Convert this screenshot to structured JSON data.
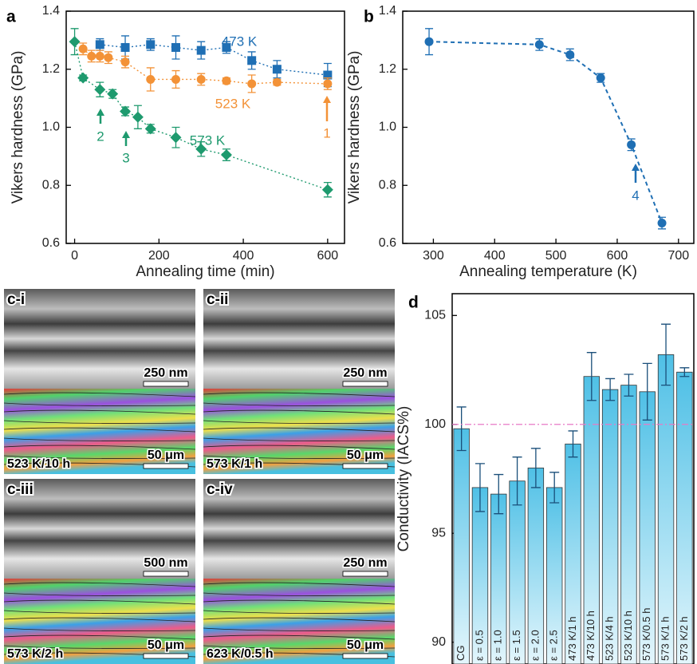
{
  "chart_data": [
    {
      "type": "line",
      "panel": "a",
      "xlabel": "Annealing time (min)",
      "ylabel": "Vikers hardness (GPa)",
      "xlim": [
        -20,
        640
      ],
      "xticks": [
        0,
        200,
        400,
        600
      ],
      "ylim": [
        0.6,
        1.4
      ],
      "yticks": [
        0.6,
        0.8,
        {
          "value": 1,
          "label": "1.0"
        },
        1.2,
        1.4
      ],
      "linestyle": "dotted",
      "series": [
        {
          "name": "473 K",
          "color": "#1f6fb4",
          "marker": "square",
          "x": [
            60,
            120,
            180,
            240,
            300,
            360,
            420,
            480,
            600
          ],
          "values": [
            1.285,
            1.275,
            1.285,
            1.275,
            1.265,
            1.275,
            1.23,
            1.2,
            1.18
          ],
          "errors": [
            0.02,
            0.04,
            0.02,
            0.04,
            0.03,
            0.02,
            0.03,
            0.03,
            0.04
          ]
        },
        {
          "name": "523 K",
          "color": "#f39237",
          "marker": "circle",
          "x": [
            20,
            40,
            60,
            80,
            120,
            180,
            240,
            300,
            360,
            420,
            480,
            600
          ],
          "values": [
            1.27,
            1.245,
            1.245,
            1.24,
            1.225,
            1.165,
            1.165,
            1.165,
            1.16,
            1.15,
            1.155,
            1.15
          ],
          "errors": [
            0.02,
            0.02,
            0.02,
            0.02,
            0.02,
            0.04,
            0.03,
            0.02,
            0.01,
            0.03,
            0.01,
            0.02
          ]
        },
        {
          "name": "573 K",
          "color": "#1e9a6e",
          "marker": "diamond",
          "x": [
            0,
            20,
            60,
            90,
            120,
            150,
            180,
            240,
            300,
            360,
            600
          ],
          "values": [
            1.295,
            1.17,
            1.13,
            1.115,
            1.055,
            1.035,
            0.995,
            0.965,
            0.925,
            0.905,
            0.785
          ],
          "errors": [
            0.045,
            0.01,
            0.025,
            0.015,
            0.015,
            0.04,
            0.015,
            0.035,
            0.025,
            0.02,
            0.025
          ]
        }
      ],
      "annotations": [
        {
          "text": "473 K",
          "color": "#1f6fb4",
          "arrow": false
        },
        {
          "text": "523 K",
          "color": "#f39237",
          "arrow": false
        },
        {
          "text": "573 K",
          "color": "#1e9a6e",
          "arrow": false
        },
        {
          "text": "1",
          "color": "#f39237",
          "arrow": true
        },
        {
          "text": "2",
          "color": "#1e9a6e",
          "arrow": true
        },
        {
          "text": "3",
          "color": "#1e9a6e",
          "arrow": true
        }
      ]
    },
    {
      "type": "line",
      "panel": "b",
      "xlabel": "Annealing temperature (K)",
      "ylabel": "Vikers hardness (GPa)",
      "xlim": [
        250,
        725
      ],
      "xticks": [
        300,
        400,
        500,
        600,
        700
      ],
      "ylim": [
        0.6,
        1.4
      ],
      "yticks": [
        0.6,
        0.8,
        {
          "value": 1,
          "label": "1.0"
        },
        1.2,
        1.4
      ],
      "linestyle": "dashed",
      "series": [
        {
          "name": "",
          "color": "#1f6fb4",
          "marker": "circle",
          "x": [
            293,
            473,
            523,
            573,
            623,
            673
          ],
          "values": [
            1.295,
            1.285,
            1.25,
            1.17,
            0.94,
            0.67
          ],
          "errors": [
            0.045,
            0.02,
            0.02,
            0.015,
            0.02,
            0.02
          ]
        }
      ],
      "annotations": [
        {
          "text": "4",
          "color": "#1f6fb4",
          "arrow": true
        }
      ]
    },
    {
      "type": "bar",
      "panel": "d",
      "ylabel": "Conductivity (IACS%)",
      "ylim": [
        89,
        106
      ],
      "yticks": [
        90,
        95,
        100,
        105
      ],
      "reference": 100,
      "reference_color": "#e879c6",
      "color": "#5bc8e8",
      "categories": [
        "CG",
        "ε = 0.5",
        "ε = 1.0",
        "ε = 1.5",
        "ε = 2.0",
        "ε = 2.5",
        "473 K/1 h",
        "473 K/10 h",
        "523 K/4 h",
        "523 K/10 h",
        "573 K/0.5 h",
        "573 K/1 h",
        "573 K/2 h"
      ],
      "values": [
        99.8,
        97.1,
        96.8,
        97.4,
        98.0,
        97.1,
        99.1,
        102.2,
        101.6,
        101.8,
        101.5,
        103.2,
        102.4
      ],
      "errors": [
        1.0,
        1.1,
        0.9,
        1.1,
        0.9,
        0.7,
        0.6,
        1.1,
        0.5,
        0.5,
        1.3,
        1.4,
        0.2
      ]
    }
  ],
  "micrographs": {
    "panel": "c",
    "tiles": [
      {
        "label": "c-i",
        "scale_tem": "250 nm",
        "scale_ebsd": "50 μm",
        "condition": "523 K/10 h"
      },
      {
        "label": "c-ii",
        "scale_tem": "250 nm",
        "scale_ebsd": "50 μm",
        "condition": "573 K/1 h"
      },
      {
        "label": "c-iii",
        "scale_tem": "500 nm",
        "scale_ebsd": "50 μm",
        "condition": "573 K/2 h"
      },
      {
        "label": "c-iv",
        "scale_tem": "250 nm",
        "scale_ebsd": "50 μm",
        "condition": "623 K/0.5 h"
      }
    ]
  }
}
